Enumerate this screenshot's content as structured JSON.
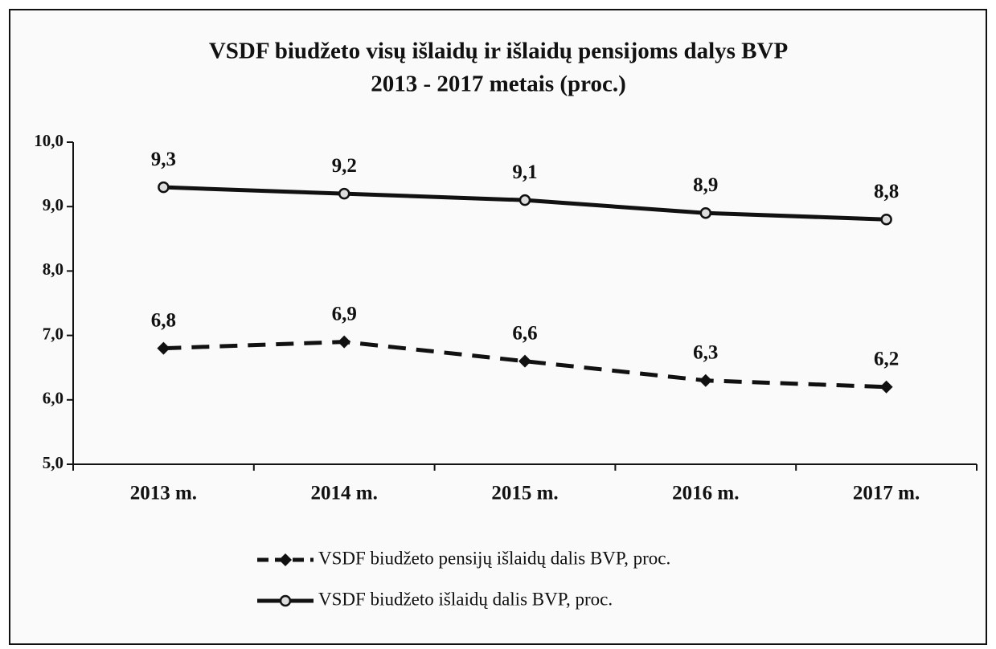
{
  "chart_data": {
    "type": "line",
    "title": [
      "VSDF biudžeto visų išlaidų ir išlaidų pensijoms dalys BVP",
      "2013 - 2017 metais (proc.)"
    ],
    "categories": [
      "2013 m.",
      "2014 m.",
      "2015 m.",
      "2016 m.",
      "2017 m."
    ],
    "series": [
      {
        "name": "VSDF biudžeto pensijų išlaidų dalis BVP, proc.",
        "color": "#111111",
        "dash": true,
        "marker": "diamond",
        "values": [
          6.8,
          6.9,
          6.6,
          6.3,
          6.2
        ],
        "value_labels": [
          "6,8",
          "6,9",
          "6,6",
          "6,3",
          "6,2"
        ]
      },
      {
        "name": "VSDF biudžeto išlaidų dalis BVP, proc.",
        "color": "#111111",
        "dash": false,
        "marker": "circle",
        "values": [
          9.3,
          9.2,
          9.1,
          8.9,
          8.8
        ],
        "value_labels": [
          "9,3",
          "9,2",
          "9,1",
          "8,9",
          "8,8"
        ]
      }
    ],
    "ylim": [
      5,
      10
    ],
    "yticks": [
      {
        "value": 5,
        "label": "5,0"
      },
      {
        "value": 6,
        "label": "6,0"
      },
      {
        "value": 7,
        "label": "7,0"
      },
      {
        "value": 8,
        "label": "8,0"
      },
      {
        "value": 9,
        "label": "9,0"
      },
      {
        "value": 10,
        "label": "10,0"
      }
    ],
    "grid": false,
    "legend": "bottom"
  }
}
